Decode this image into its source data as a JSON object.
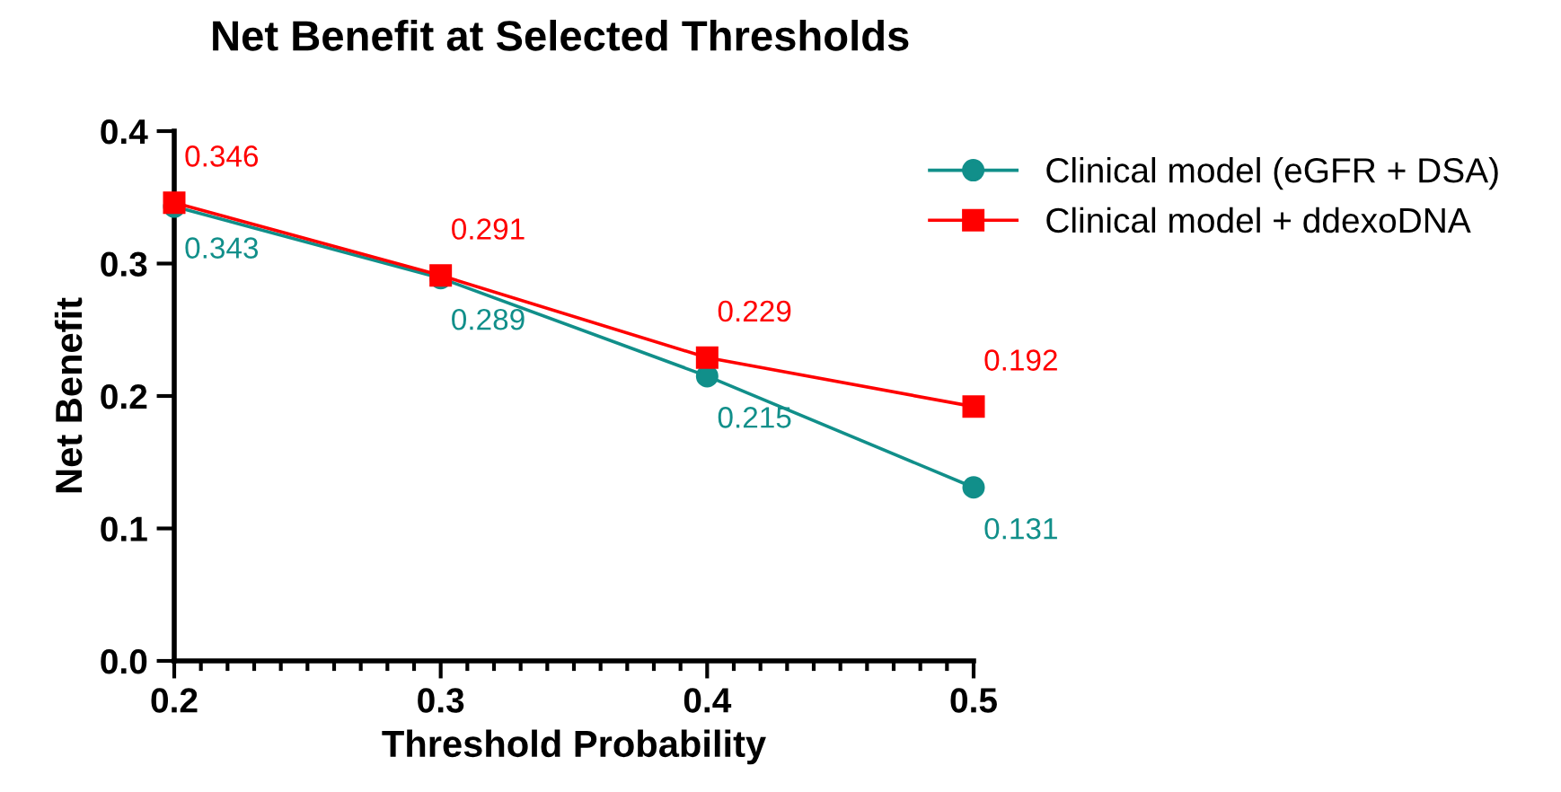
{
  "chart_data": {
    "type": "line",
    "title": "Net Benefit at Selected Thresholds",
    "xlabel": "Threshold Probability",
    "ylabel": "Net Benefit",
    "x": [
      0.2,
      0.3,
      0.4,
      0.5
    ],
    "series": [
      {
        "name": "Clinical model (eGFR + DSA)",
        "color": "#118f8a",
        "values": [
          0.343,
          0.289,
          0.215,
          0.131
        ],
        "marker": "circle"
      },
      {
        "name": "Clinical model + ddexoDNA",
        "color": "#ff0000",
        "values": [
          0.346,
          0.291,
          0.229,
          0.192
        ],
        "marker": "square"
      }
    ],
    "xlim": [
      0.2,
      0.5
    ],
    "xticks": [
      0.2,
      0.3,
      0.4,
      0.5
    ],
    "ylim": [
      0.0,
      0.4
    ],
    "yticks": [
      {
        "value": 0.0,
        "label": "0.0"
      },
      0.1,
      0.2,
      0.3,
      0.4
    ],
    "data_labels": true,
    "grid": false,
    "legend": "top right",
    "line_style": "solid"
  }
}
